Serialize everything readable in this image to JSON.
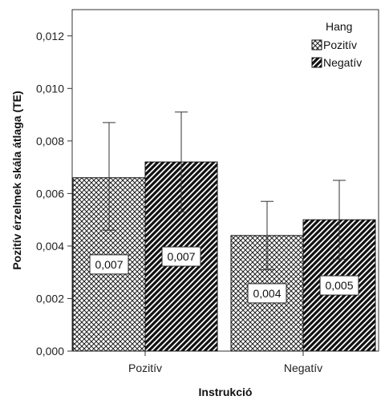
{
  "chart_data": {
    "type": "bar",
    "xlabel": "Instrukció",
    "ylabel": "Pozitív érzelmek skála átlaga (TE)",
    "categories": [
      "Pozitív",
      "Negatív"
    ],
    "ylim": [
      0,
      0.013
    ],
    "yticks": [
      "0,000",
      "0,002",
      "0,004",
      "0,006",
      "0,008",
      "0,010",
      "0,012"
    ],
    "ytick_values": [
      0,
      0.002,
      0.004,
      0.006,
      0.008,
      0.01,
      0.012
    ],
    "grid": false,
    "legend": {
      "title": "Hang",
      "position": "top-right",
      "entries": [
        "Pozitív",
        "Negatív"
      ]
    },
    "series": [
      {
        "name": "Pozitív",
        "pattern": "crosshatch",
        "values": [
          0.0066,
          0.0044
        ],
        "err_low": [
          0.0046,
          0.0031
        ],
        "err_high": [
          0.0087,
          0.0057
        ],
        "data_labels": [
          "0,007",
          "0,004"
        ]
      },
      {
        "name": "Negatív",
        "pattern": "diagonal",
        "values": [
          0.0072,
          0.005
        ],
        "err_low": [
          0.0053,
          0.0035
        ],
        "err_high": [
          0.0091,
          0.0065
        ],
        "data_labels": [
          "0,007",
          "0,005"
        ]
      }
    ]
  }
}
